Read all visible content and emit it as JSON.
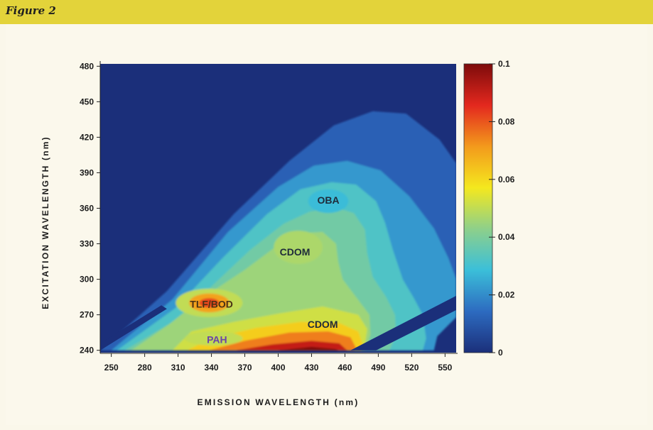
{
  "figure": {
    "label": "Figure 2"
  },
  "chart_data": {
    "type": "heatmap",
    "xlabel": "EMISSION WAVELENGTH (nm)",
    "ylabel": "EXCITATION WAVELENGTH (nm)",
    "xlim": [
      240,
      560
    ],
    "ylim": [
      238,
      482
    ],
    "x_ticks": [
      250,
      280,
      310,
      340,
      370,
      400,
      430,
      460,
      490,
      520,
      550
    ],
    "y_ticks": [
      240,
      270,
      300,
      330,
      360,
      390,
      420,
      450,
      480
    ],
    "colorbar": {
      "range": [
        0,
        0.1
      ],
      "ticks": [
        {
          "value": 0,
          "label": "0"
        },
        {
          "value": 0.02,
          "label": "0.02"
        },
        {
          "value": 0.04,
          "label": "0.04"
        },
        {
          "value": 0.06,
          "label": "0.06"
        },
        {
          "value": 0.08,
          "label": "0.08"
        },
        {
          "value": 0.1,
          "label": "0.1"
        }
      ],
      "colors": [
        "#1b2f7a",
        "#2d6bc0",
        "#3bbfd9",
        "#8ed08a",
        "#f4e81e",
        "#f39a1c",
        "#e3281e",
        "#7d0b0b"
      ]
    },
    "background_color": "#1b2f7a",
    "annotations": [
      {
        "text": "OBA",
        "x": 445,
        "y": 367,
        "color": "#1f2b3a"
      },
      {
        "text": "CDOM",
        "x": 415,
        "y": 323,
        "color": "#1f2b3a"
      },
      {
        "text": "TLF/BOD",
        "x": 340,
        "y": 279,
        "color": "#4a3215"
      },
      {
        "text": "CDOM",
        "x": 440,
        "y": 262,
        "color": "#1f2b3a"
      },
      {
        "text": "PAH",
        "x": 345,
        "y": 249,
        "color": "#6b44a8"
      }
    ],
    "regions": [
      {
        "name": "outer-blue",
        "value": 0.012,
        "polygon": [
          [
            240,
            240
          ],
          [
            300,
            290
          ],
          [
            360,
            355
          ],
          [
            410,
            400
          ],
          [
            450,
            430
          ],
          [
            485,
            442
          ],
          [
            515,
            440
          ],
          [
            545,
            418
          ],
          [
            560,
            398
          ],
          [
            560,
            268
          ],
          [
            543,
            252
          ],
          [
            535,
            240
          ]
        ]
      },
      {
        "name": "mid-blue",
        "value": 0.022,
        "polygon": [
          [
            250,
            240
          ],
          [
            305,
            283
          ],
          [
            355,
            340
          ],
          [
            400,
            378
          ],
          [
            432,
            396
          ],
          [
            462,
            400
          ],
          [
            492,
            392
          ],
          [
            518,
            370
          ],
          [
            540,
            343
          ],
          [
            553,
            318
          ],
          [
            560,
            300
          ],
          [
            560,
            268
          ],
          [
            543,
            252
          ],
          [
            540,
            240
          ]
        ]
      },
      {
        "name": "cyan",
        "value": 0.032,
        "polygon": [
          [
            255,
            240
          ],
          [
            308,
            276
          ],
          [
            350,
            318
          ],
          [
            390,
            355
          ],
          [
            420,
            376
          ],
          [
            448,
            382
          ],
          [
            470,
            380
          ],
          [
            488,
            366
          ],
          [
            496,
            348
          ],
          [
            503,
            325
          ],
          [
            512,
            300
          ],
          [
            522,
            284
          ],
          [
            530,
            270
          ],
          [
            533,
            250
          ],
          [
            530,
            240
          ]
        ]
      },
      {
        "name": "aqua",
        "value": 0.038,
        "polygon": [
          [
            262,
            240
          ],
          [
            312,
            268
          ],
          [
            340,
            294
          ],
          [
            375,
            325
          ],
          [
            405,
            347
          ],
          [
            428,
            357
          ],
          [
            450,
            361
          ],
          [
            468,
            356
          ],
          [
            478,
            342
          ],
          [
            480,
            322
          ],
          [
            485,
            302
          ],
          [
            497,
            285
          ],
          [
            505,
            270
          ],
          [
            506,
            253
          ],
          [
            500,
            240
          ]
        ]
      },
      {
        "name": "light-green",
        "value": 0.045,
        "polygon": [
          [
            268,
            240
          ],
          [
            302,
            262
          ],
          [
            330,
            283
          ],
          [
            370,
            308
          ],
          [
            400,
            329
          ],
          [
            420,
            339
          ],
          [
            440,
            340
          ],
          [
            452,
            330
          ],
          [
            454,
            315
          ],
          [
            458,
            300
          ],
          [
            470,
            285
          ],
          [
            482,
            270
          ],
          [
            483,
            253
          ],
          [
            478,
            240
          ]
        ]
      },
      {
        "name": "yellow-green",
        "value": 0.052,
        "polygon": [
          [
            305,
            240
          ],
          [
            322,
            256
          ],
          [
            360,
            264
          ],
          [
            400,
            271
          ],
          [
            440,
            277
          ],
          [
            472,
            270
          ],
          [
            480,
            258
          ],
          [
            478,
            245
          ],
          [
            475,
            240
          ]
        ]
      },
      {
        "name": "yellow",
        "value": 0.062,
        "polygon": [
          [
            318,
            240
          ],
          [
            340,
            250
          ],
          [
            380,
            259
          ],
          [
            420,
            264
          ],
          [
            455,
            263
          ],
          [
            472,
            256
          ],
          [
            476,
            245
          ],
          [
            474,
            240
          ]
        ]
      },
      {
        "name": "orange",
        "value": 0.075,
        "polygon": [
          [
            338,
            240
          ],
          [
            370,
            248
          ],
          [
            410,
            255
          ],
          [
            445,
            256
          ],
          [
            465,
            251
          ],
          [
            470,
            242
          ],
          [
            468,
            240
          ]
        ]
      },
      {
        "name": "red",
        "value": 0.09,
        "polygon": [
          [
            362,
            240
          ],
          [
            395,
            245
          ],
          [
            430,
            248
          ],
          [
            455,
            246
          ],
          [
            462,
            240
          ]
        ]
      },
      {
        "name": "dark-red",
        "value": 0.1,
        "polygon": [
          [
            400,
            240
          ],
          [
            430,
            243
          ],
          [
            452,
            241
          ],
          [
            454,
            240
          ]
        ]
      },
      {
        "name": "tlf-outer",
        "value": 0.05,
        "ellipse": {
          "cx": 338,
          "cy": 280,
          "rx": 30,
          "ry": 12
        }
      },
      {
        "name": "tlf-mid",
        "value": 0.07,
        "ellipse": {
          "cx": 338,
          "cy": 280,
          "rx": 18,
          "ry": 8
        }
      },
      {
        "name": "tlf-core",
        "value": 0.082,
        "ellipse": {
          "cx": 338,
          "cy": 280,
          "rx": 9,
          "ry": 4
        }
      },
      {
        "name": "oba-spot",
        "value": 0.028,
        "ellipse": {
          "cx": 445,
          "cy": 366,
          "rx": 18,
          "ry": 10
        }
      },
      {
        "name": "cdom-upper-spot",
        "value": 0.047,
        "ellipse": {
          "cx": 418,
          "cy": 327,
          "rx": 22,
          "ry": 14
        }
      },
      {
        "name": "pah-spot",
        "value": 0.05,
        "ellipse": {
          "cx": 342,
          "cy": 250,
          "rx": 26,
          "ry": 6
        }
      }
    ],
    "masked_bands": [
      {
        "name": "second-order-scatter",
        "polygon": [
          [
            465,
            240
          ],
          [
            560,
            286
          ],
          [
            560,
            274
          ],
          [
            488,
            240
          ]
        ]
      },
      {
        "name": "lower-left-scatter",
        "polygon": [
          [
            240,
            240
          ],
          [
            300,
            275
          ],
          [
            295,
            278
          ],
          [
            240,
            246
          ]
        ]
      }
    ]
  }
}
